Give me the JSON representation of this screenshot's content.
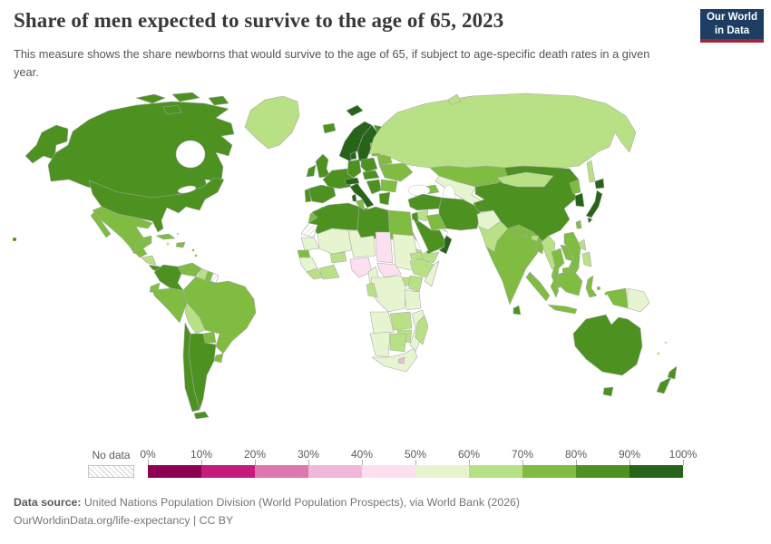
{
  "header": {
    "title": "Share of men expected to survive to the age of 65, 2023",
    "subtitle": "This measure shows the share newborns that would survive to the age of 65, if subject to age-specific death rates in a given year."
  },
  "logo": {
    "line1": "Our World",
    "line2": "in Data",
    "bg_color": "#1d3d63",
    "accent_color": "#a52639"
  },
  "legend": {
    "no_data_label": "No data",
    "tick_labels": [
      "0%",
      "10%",
      "20%",
      "30%",
      "40%",
      "50%",
      "60%",
      "70%",
      "80%",
      "90%",
      "100%"
    ]
  },
  "footer": {
    "source_label": "Data source:",
    "source_text": "United Nations Population Division (World Population Prospects), via World Bank (2026)",
    "link_text": "OurWorldinData.org/life-expectancy | CC BY"
  },
  "chart_data": {
    "type": "choropleth_map",
    "title": "Share of men expected to survive to the age of 65, 2023",
    "unit": "% of newborn males surviving to age 65",
    "legend_position": "bottom",
    "bins": [
      {
        "range": "0-10%",
        "color": "#8e0152"
      },
      {
        "range": "10-20%",
        "color": "#c51b7d"
      },
      {
        "range": "20-30%",
        "color": "#de77ae"
      },
      {
        "range": "30-40%",
        "color": "#f1b6da"
      },
      {
        "range": "40-50%",
        "color": "#fde0ef"
      },
      {
        "range": "50-60%",
        "color": "#e6f5d0"
      },
      {
        "range": "60-70%",
        "color": "#b8e186"
      },
      {
        "range": "70-80%",
        "color": "#7fbc41"
      },
      {
        "range": "80-90%",
        "color": "#4d9221"
      },
      {
        "range": "90-100%",
        "color": "#276419"
      }
    ],
    "no_data_color": "hatch",
    "regions": {
      "usa": "80-90%",
      "canada": "80-90%",
      "greenland": "60-70%",
      "iceland": "80-90%",
      "mexico": "70-80%",
      "guatemala": "70-80%",
      "honduras-nicaragua": "60-70%",
      "costa-rica-panama": "80-90%",
      "cuba": "70-80%",
      "hispaniola": "70-80%",
      "jamaica": "60-70%",
      "bahamas": "60-70%",
      "lesser-antilles": "70-80%",
      "colombia": "80-90%",
      "venezuela": "70-80%",
      "guyana": "60-70%",
      "suriname": "70-80%",
      "french-guiana": "No data",
      "ecuador": "70-80%",
      "peru": "70-80%",
      "brazil": "70-80%",
      "bolivia": "60-70%",
      "paraguay": "70-80%",
      "uruguay": "70-80%",
      "chile": "80-90%",
      "argentina": "80-90%",
      "svalbard": "90-100%",
      "norway": "90-100%",
      "sweden": "90-100%",
      "finland": "80-90%",
      "denmark": "90-100%",
      "uk": "80-90%",
      "ireland": "80-90%",
      "germany": "80-90%",
      "france": "80-90%",
      "spain": "80-90%",
      "portugal": "80-90%",
      "italy": "90-100%",
      "switzerland-austria": "90-100%",
      "poland": "80-90%",
      "central-europe": "80-90%",
      "baltics": "70-80%",
      "belarus": "70-80%",
      "ukraine": "70-80%",
      "romania-bulgaria": "70-80%",
      "west-balkans": "80-90%",
      "greece": "80-90%",
      "russia": "60-70%",
      "kazakhstan": "70-80%",
      "uzbekistan-turkmenistan": "50-60%",
      "kyrgyzstan-tajikistan": "60-70%",
      "caucasus": "70-80%",
      "turkey": "80-90%",
      "syria": "60-70%",
      "levant": "80-90%",
      "iraq": "70-80%",
      "iran": "80-90%",
      "saudi-arabia": "80-90%",
      "oman-uae": "90-100%",
      "yemen": "60-70%",
      "afghanistan": "50-60%",
      "pakistan": "60-70%",
      "india": "70-80%",
      "sri-lanka": "80-90%",
      "nepal": "70-80%",
      "bhutan": "60-70%",
      "bangladesh": "70-80%",
      "china": "80-90%",
      "mongolia": "60-70%",
      "north-korea": "70-80%",
      "south-korea": "90-100%",
      "japan": "90-100%",
      "taiwan": "70-80%",
      "myanmar": "60-70%",
      "thailand": "70-80%",
      "laos": "70-80%",
      "vietnam": "70-80%",
      "cambodia": "70-80%",
      "malaysia": "70-80%",
      "indonesia": "70-80%",
      "philippines": "60-70%",
      "papua-west": "70-80%",
      "papua-new-guinea": "50-60%",
      "australia": "80-90%",
      "new-zealand": "80-90%",
      "pacific-islands": "60-70%",
      "morocco": "70-80%",
      "western-sahara": "No data",
      "mauritania": "50-60%",
      "senegal": "70-80%",
      "guinea-region": "50-60%",
      "sierra-leone-liberia": "60-70%",
      "mali": "50-60%",
      "burkina-faso": "60-70%",
      "ivory-coast-ghana": "60-70%",
      "algeria": "80-90%",
      "tunisia": "70-80%",
      "libya": "80-90%",
      "egypt": "70-80%",
      "niger": "50-60%",
      "chad": "40-50%",
      "sudan": "50-60%",
      "eritrea": "60-70%",
      "nigeria": "40-50%",
      "cameroon": "50-60%",
      "central-african-republic": "40-50%",
      "ethiopia": "60-70%",
      "somalia": "50-60%",
      "kenya": "60-70%",
      "uganda": "60-70%",
      "drc": "50-60%",
      "gabon-congo": "60-70%",
      "tanzania": "50-60%",
      "angola": "50-60%",
      "zambia": "60-70%",
      "mozambique": "50-60%",
      "zimbabwe": "60-70%",
      "namibia": "50-60%",
      "botswana": "60-70%",
      "south-africa": "50-60%",
      "lesotho": "30-40%",
      "madagascar": "60-70%"
    }
  }
}
